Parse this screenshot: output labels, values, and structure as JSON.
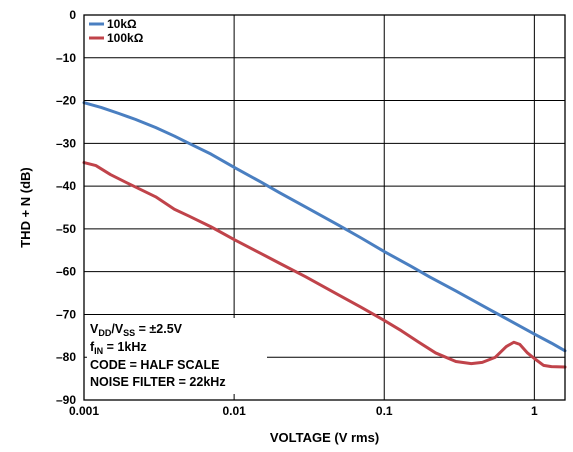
{
  "chart_data": {
    "type": "line",
    "x_scale": "log",
    "xlabel": "VOLTAGE (V rms)",
    "ylabel": "THD + N (dB)",
    "xlim": [
      0.001,
      1.6
    ],
    "ylim": [
      -90,
      0
    ],
    "grid": true,
    "legend_placement": "top-left",
    "x_ticks": [
      {
        "value": 0.001,
        "label": "0.001"
      },
      {
        "value": 0.01,
        "label": "0.01"
      },
      {
        "value": 0.1,
        "label": "0.1"
      },
      {
        "value": 1,
        "label": "1"
      }
    ],
    "y_ticks": [
      {
        "value": 0,
        "label": "0"
      },
      {
        "value": -10,
        "label": "–10"
      },
      {
        "value": -20,
        "label": "–20"
      },
      {
        "value": -30,
        "label": "–30"
      },
      {
        "value": -40,
        "label": "–40"
      },
      {
        "value": -50,
        "label": "–50"
      },
      {
        "value": -60,
        "label": "–60"
      },
      {
        "value": -70,
        "label": "–70"
      },
      {
        "value": -80,
        "label": "–80"
      },
      {
        "value": -90,
        "label": "–90"
      }
    ],
    "series": [
      {
        "name": "10kΩ",
        "color": "#4a7fc1",
        "x": [
          0.001,
          0.0013,
          0.0017,
          0.0022,
          0.003,
          0.004,
          0.005,
          0.007,
          0.01,
          0.015,
          0.02,
          0.03,
          0.05,
          0.07,
          0.1,
          0.15,
          0.2,
          0.3,
          0.5,
          0.7,
          1.0,
          1.3,
          1.6
        ],
        "y": [
          -20.5,
          -21.6,
          -23.0,
          -24.4,
          -26.3,
          -28.3,
          -30.0,
          -32.5,
          -35.6,
          -39.0,
          -41.5,
          -44.9,
          -49.2,
          -52.1,
          -55.3,
          -58.7,
          -61.2,
          -64.5,
          -68.8,
          -71.6,
          -74.6,
          -76.7,
          -78.5
        ]
      },
      {
        "name": "100kΩ",
        "color": "#c0434a",
        "x": [
          0.001,
          0.0012,
          0.0015,
          0.002,
          0.003,
          0.004,
          0.005,
          0.007,
          0.01,
          0.015,
          0.02,
          0.03,
          0.05,
          0.07,
          0.1,
          0.13,
          0.17,
          0.22,
          0.3,
          0.38,
          0.45,
          0.55,
          0.65,
          0.73,
          0.8,
          0.9,
          1.0,
          1.15,
          1.3,
          1.6
        ],
        "y": [
          -34.5,
          -35.2,
          -37.3,
          -39.5,
          -42.5,
          -45.4,
          -47.0,
          -49.5,
          -52.5,
          -55.7,
          -58.0,
          -61.2,
          -65.5,
          -68.3,
          -71.4,
          -73.8,
          -76.5,
          -79.0,
          -81.0,
          -81.5,
          -81.2,
          -80.0,
          -77.5,
          -76.5,
          -77.0,
          -79.0,
          -80.3,
          -81.9,
          -82.2,
          -82.3
        ]
      }
    ],
    "annotations": [
      {
        "main": "V",
        "sub1": "DD",
        "mid": "/V",
        "sub2": "SS",
        "tail": " = ±2.5V"
      },
      {
        "main": "f",
        "sub1": "IN",
        "tail": " = 1kHz"
      },
      {
        "text": "CODE = HALF SCALE"
      },
      {
        "text": "NOISE FILTER = 22kHz"
      }
    ]
  }
}
